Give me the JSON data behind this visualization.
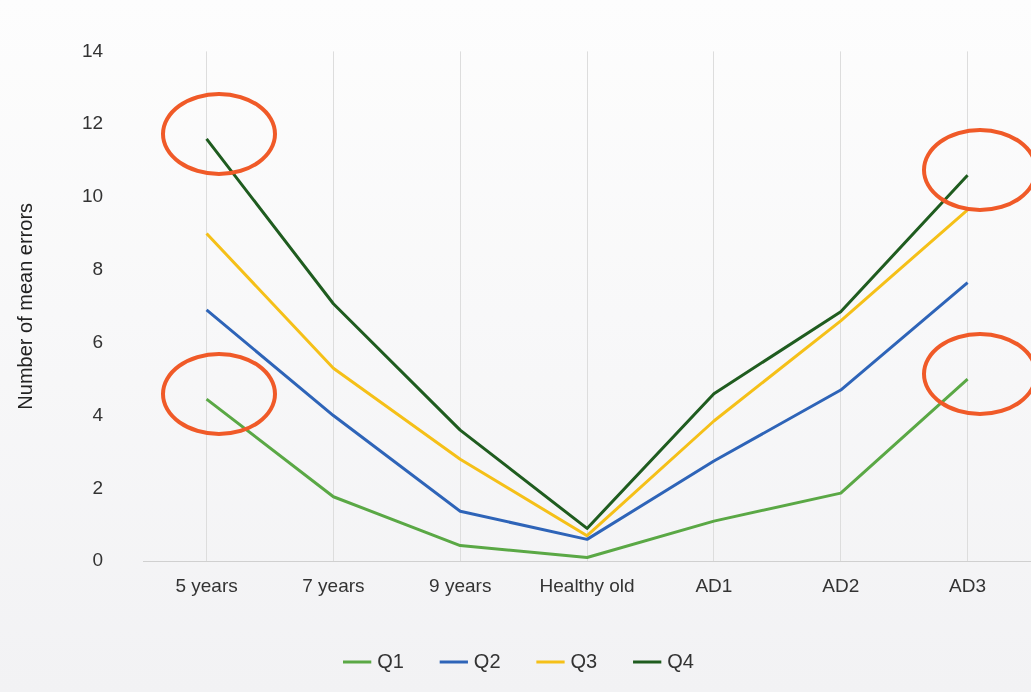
{
  "chart_data": {
    "type": "line",
    "ylabel": "Number of mean errors",
    "categories": [
      "5 years",
      "7 years",
      "9 years",
      "Healthy old",
      "AD1",
      "AD2",
      "AD3"
    ],
    "series": [
      {
        "name": "Q1",
        "color": "#5aa845",
        "values": [
          4.45,
          1.77,
          0.43,
          0.1,
          1.1,
          1.87,
          5.0
        ]
      },
      {
        "name": "Q2",
        "color": "#2e64b8",
        "values": [
          6.9,
          4.0,
          1.37,
          0.6,
          2.75,
          4.7,
          7.65
        ]
      },
      {
        "name": "Q3",
        "color": "#f5c018",
        "values": [
          9.0,
          5.3,
          2.8,
          0.7,
          3.85,
          6.6,
          9.65
        ]
      },
      {
        "name": "Q4",
        "color": "#1f5c1f",
        "values": [
          11.6,
          7.07,
          3.6,
          0.9,
          4.6,
          6.85,
          10.6
        ]
      }
    ],
    "ylim": [
      0,
      14
    ],
    "yticks": [
      0,
      2,
      4,
      6,
      8,
      10,
      12,
      14
    ],
    "grid": "x",
    "legend": "bottom",
    "marker": "none",
    "line_style": "solid"
  }
}
